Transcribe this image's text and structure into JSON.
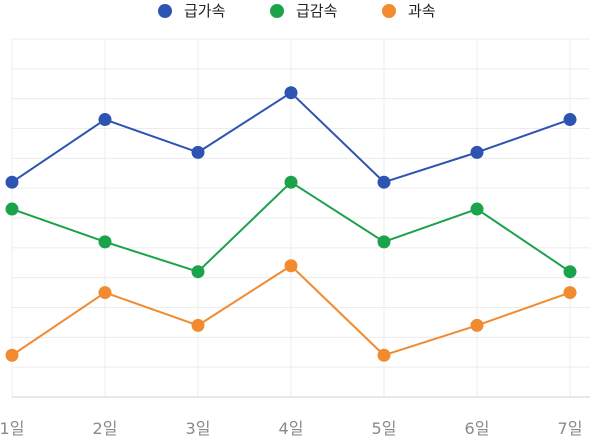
{
  "chart_data": {
    "type": "line",
    "categories": [
      "1일",
      "2일",
      "3일",
      "4일",
      "5일",
      "6일",
      "7일"
    ],
    "series": [
      {
        "name": "급가속",
        "color": "#2c54b0",
        "values": [
          7.2,
          9.3,
          8.2,
          10.2,
          7.2,
          8.2,
          9.3
        ]
      },
      {
        "name": "급감속",
        "color": "#1aa34a",
        "values": [
          6.3,
          5.2,
          4.2,
          7.2,
          5.2,
          6.3,
          4.2
        ]
      },
      {
        "name": "과속",
        "color": "#f28a30",
        "values": [
          1.4,
          3.5,
          2.4,
          4.4,
          1.4,
          2.4,
          3.5
        ]
      }
    ],
    "title": "",
    "xlabel": "",
    "ylabel": "",
    "ylim": [
      0,
      12
    ],
    "grid": true,
    "legend": "top-center"
  }
}
